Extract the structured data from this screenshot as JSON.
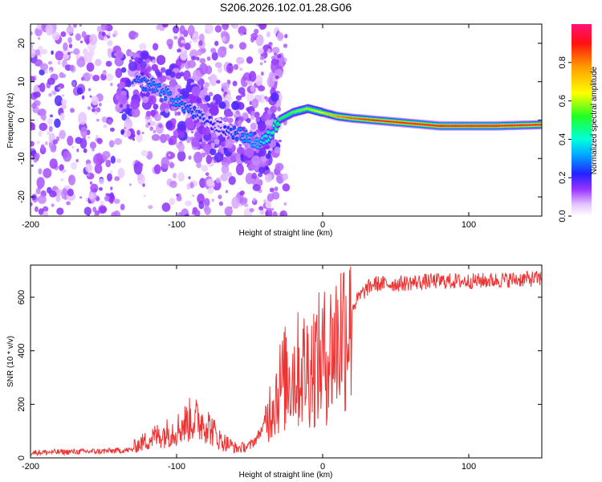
{
  "title": "S206.2026.102.01.28.G06",
  "chart_data": [
    {
      "type": "heatmap",
      "xlabel": "Height of straight line (km)",
      "ylabel": "Frequency (Hz)",
      "xlim": [
        -200,
        150
      ],
      "ylim": [
        -25,
        25
      ],
      "xticks": [
        -200,
        -100,
        0,
        100
      ],
      "yticks": [
        -20,
        -10,
        0,
        10,
        20
      ],
      "colorbar": {
        "label": "Normalized spectral amplitude",
        "range": [
          0,
          1
        ],
        "ticks": [
          0.0,
          0.2,
          0.4,
          0.6,
          0.8
        ]
      },
      "ridge": {
        "x": [
          -130,
          -115,
          -100,
          -85,
          -70,
          -55,
          -45,
          -38,
          -30,
          -20,
          -10,
          0,
          10,
          20,
          35,
          50,
          65,
          80,
          100,
          120,
          150
        ],
        "y": [
          10,
          9,
          5,
          1,
          -2,
          -4,
          -6,
          -5,
          0,
          2,
          3,
          2,
          1,
          0.5,
          0,
          -0.5,
          -1,
          -1.5,
          -1.5,
          -1.5,
          -1.2
        ],
        "amplitude": [
          0.25,
          0.3,
          0.3,
          0.25,
          0.2,
          0.3,
          0.35,
          0.4,
          0.5,
          0.55,
          0.6,
          0.65,
          0.8,
          0.85,
          0.9,
          0.92,
          0.93,
          0.95,
          0.95,
          0.95,
          0.9
        ]
      }
    },
    {
      "type": "line",
      "xlabel": "Height of straight line (km)",
      "ylabel": "SNR (10 * v/v)",
      "xlim": [
        -200,
        150
      ],
      "ylim": [
        0,
        720
      ],
      "xticks": [
        -200,
        -100,
        0,
        100
      ],
      "yticks": [
        0,
        200,
        400,
        600
      ],
      "color": "#ee3333",
      "series": [
        {
          "name": "SNR",
          "x": [
            -200,
            -150,
            -130,
            -115,
            -100,
            -90,
            -80,
            -70,
            -60,
            -50,
            -45,
            -40,
            -35,
            -30,
            -25,
            -20,
            -15,
            -10,
            -5,
            0,
            5,
            10,
            15,
            20,
            25,
            30,
            35,
            50,
            75,
            100,
            125,
            150
          ],
          "y": [
            20,
            25,
            30,
            60,
            80,
            110,
            100,
            50,
            30,
            40,
            70,
            120,
            200,
            260,
            300,
            320,
            330,
            340,
            360,
            370,
            400,
            440,
            500,
            560,
            600,
            630,
            650,
            650,
            660,
            660,
            665,
            670
          ]
        }
      ]
    }
  ]
}
